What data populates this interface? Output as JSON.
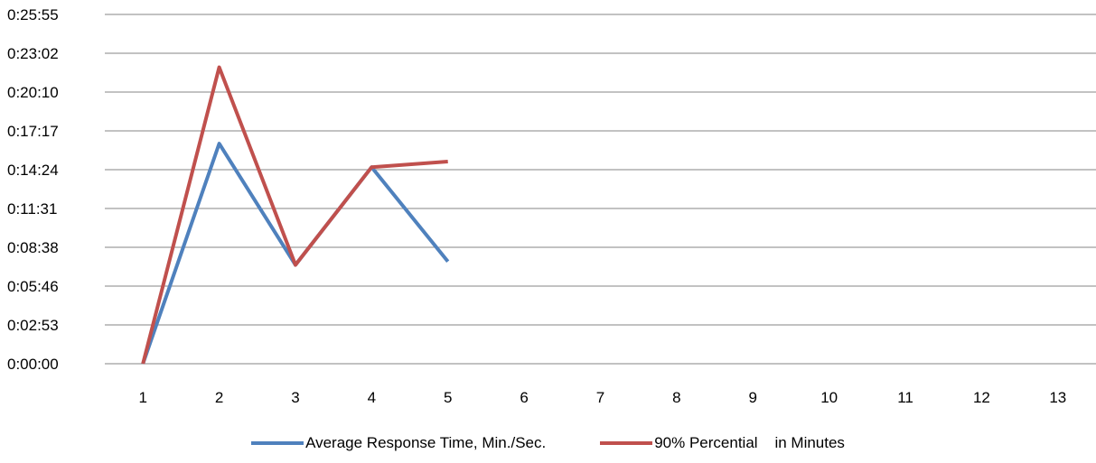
{
  "chart_data": {
    "type": "line",
    "categories": [
      "1",
      "2",
      "3",
      "4",
      "5",
      "6",
      "7",
      "8",
      "9",
      "10",
      "11",
      "12",
      "13"
    ],
    "y_ticks": [
      "0:00:00",
      "0:02:53",
      "0:05:46",
      "0:08:38",
      "0:11:31",
      "0:14:24",
      "0:17:17",
      "0:20:10",
      "0:23:02",
      "0:25:55"
    ],
    "ylim_seconds": [
      0,
      1555
    ],
    "grid": true,
    "legend_position": "bottom",
    "series": [
      {
        "name": "Average Response Time, Min./Sec.",
        "color": "#4f81bd",
        "values_seconds": [
          0,
          980,
          440,
          875,
          455,
          null,
          null,
          null,
          null,
          null,
          null,
          null,
          null
        ]
      },
      {
        "name": "90% Percential    in Minutes",
        "color": "#c0504d",
        "values_seconds": [
          0,
          1320,
          440,
          875,
          900,
          null,
          null,
          null,
          null,
          null,
          null,
          null,
          null
        ]
      }
    ]
  }
}
